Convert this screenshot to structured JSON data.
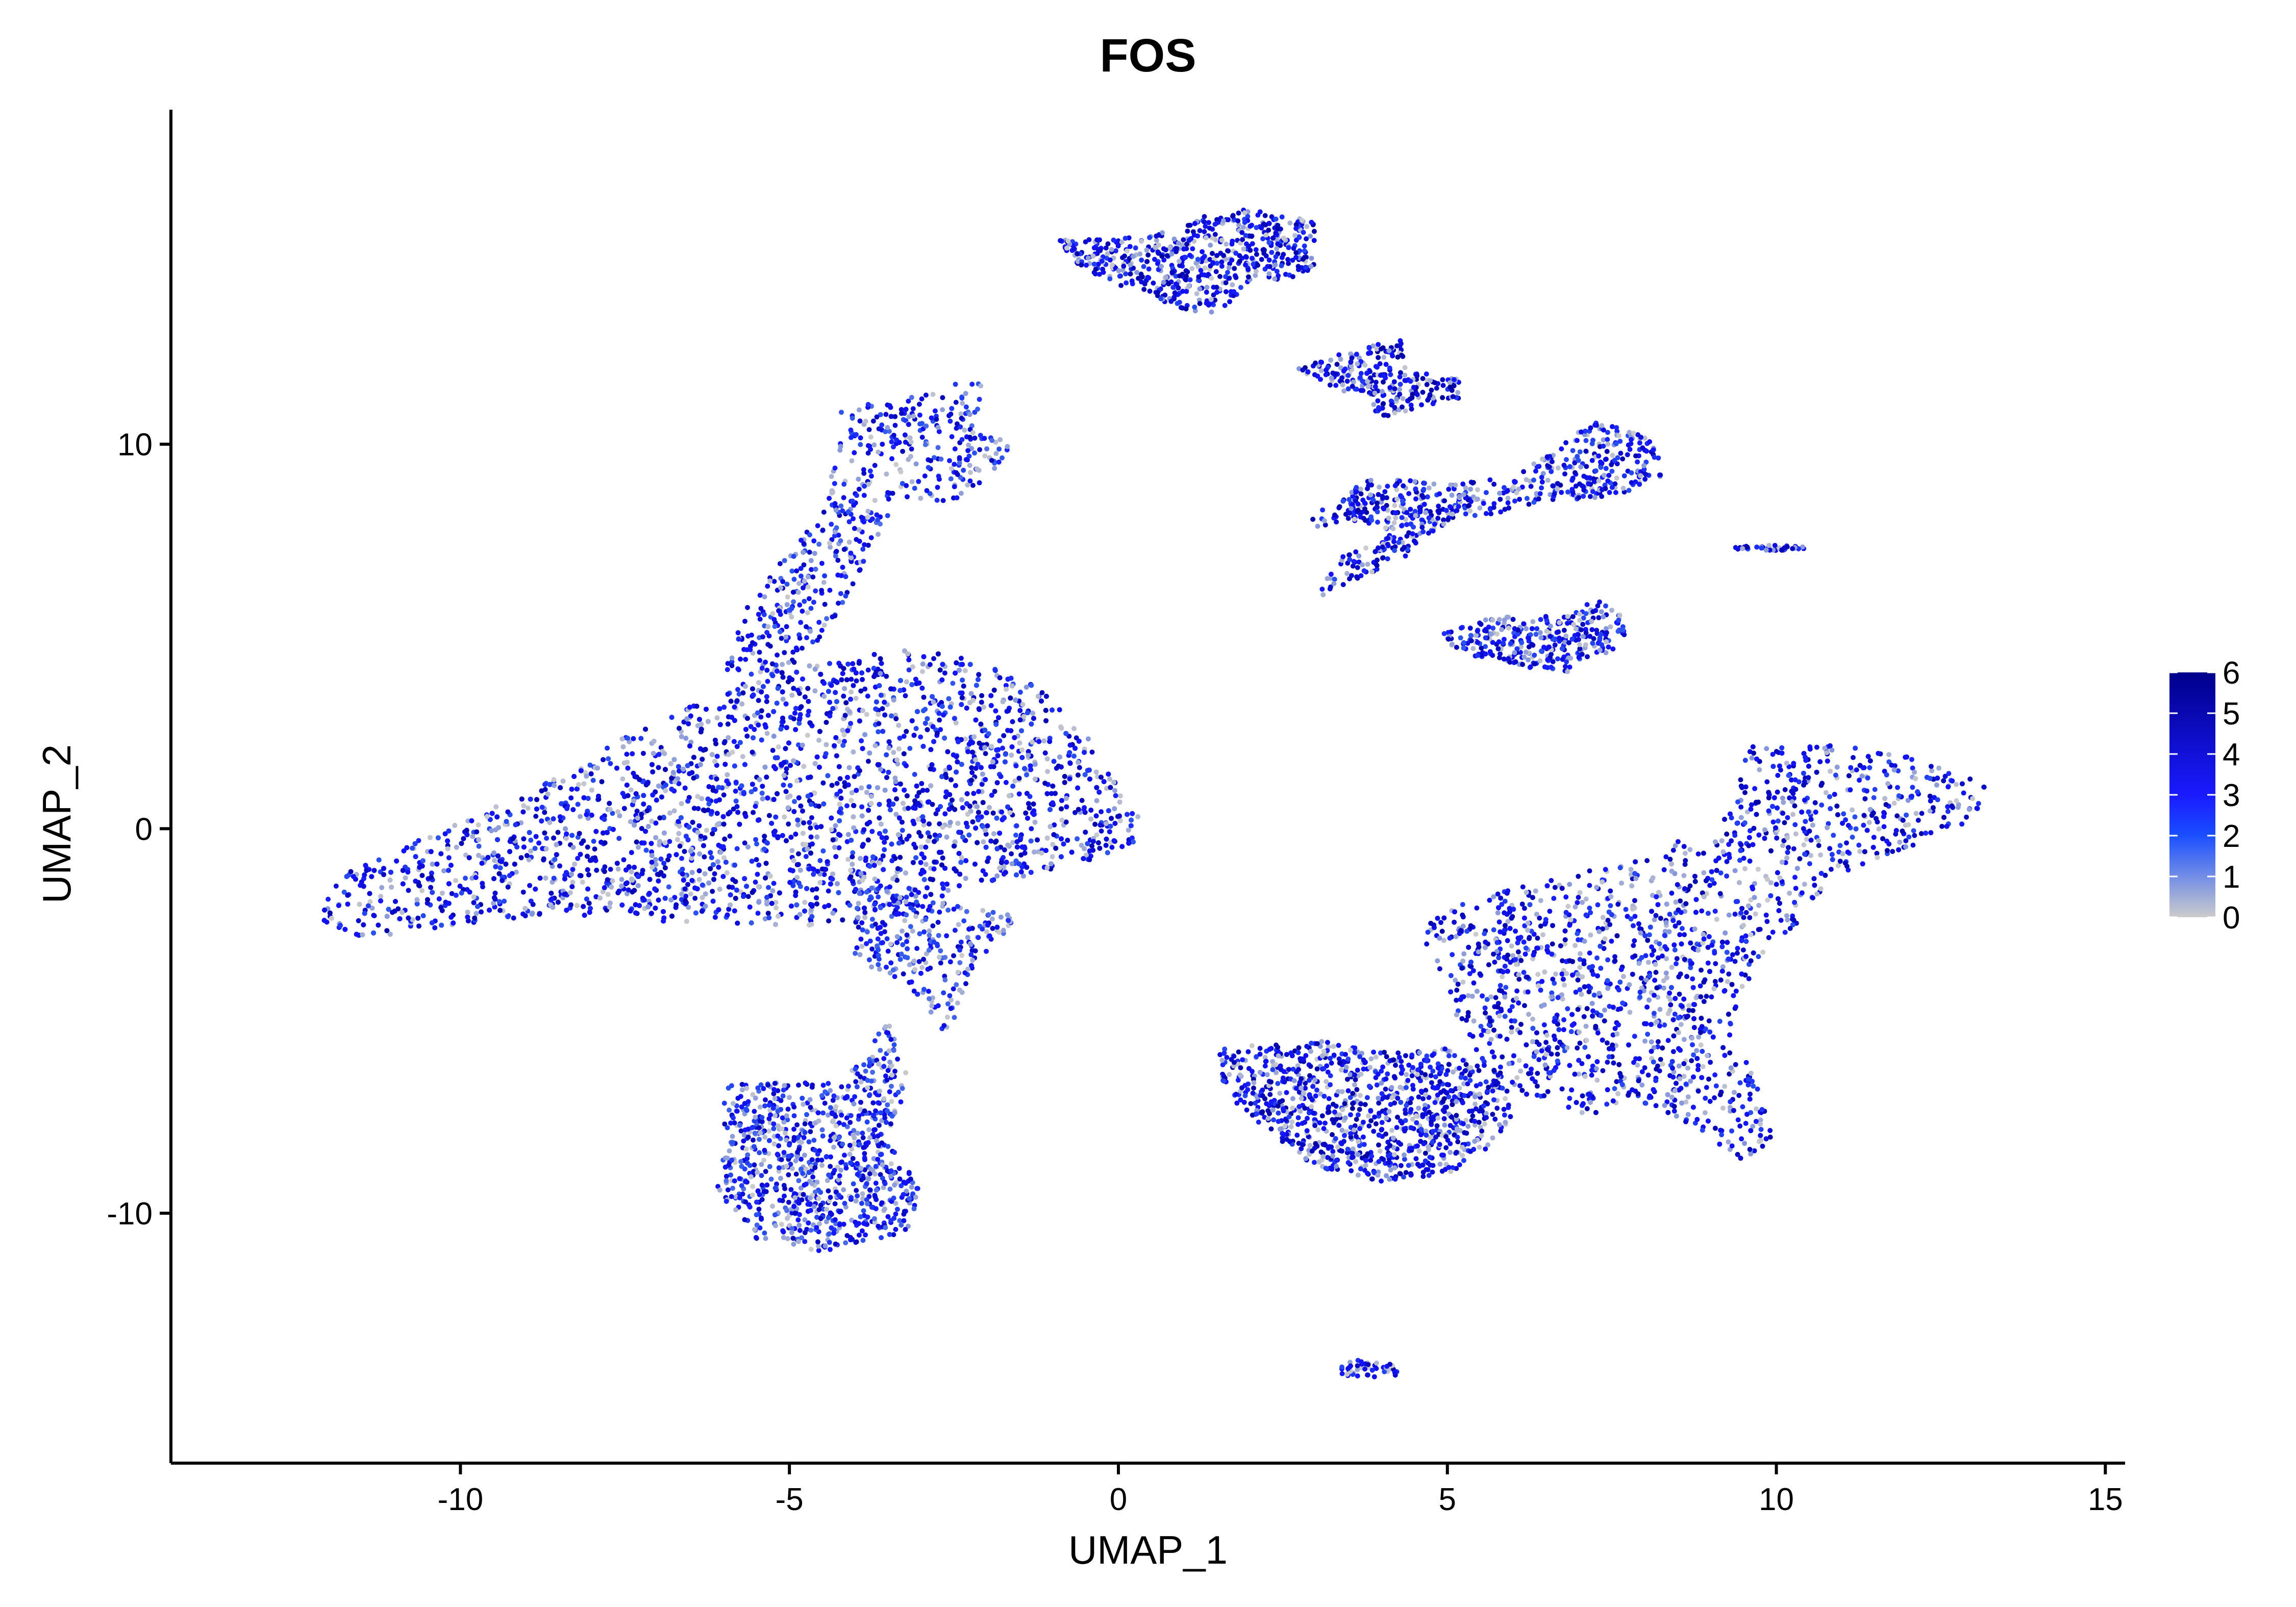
{
  "chart_data": {
    "type": "scatter",
    "title": "FOS",
    "xlabel": "UMAP_1",
    "ylabel": "UMAP_2",
    "xlim": [
      -14.4,
      15.3
    ],
    "ylim": [
      -16.5,
      18.7
    ],
    "x_ticks": [
      -10,
      -5,
      0,
      5,
      10,
      15
    ],
    "x_tick_labels": [
      "-10",
      "-5",
      "0",
      "5",
      "10",
      "15"
    ],
    "y_ticks": [
      -10,
      0,
      10
    ],
    "y_tick_labels": [
      "-10",
      "0",
      "10"
    ],
    "grid": false,
    "legend": {
      "placement": "right",
      "type": "colorbar",
      "min": 0,
      "max": 6,
      "ticks": [
        0,
        1,
        2,
        3,
        4,
        5,
        6
      ],
      "tick_labels": [
        "0",
        "1",
        "2",
        "3",
        "4",
        "5",
        "6"
      ]
    },
    "colors": {
      "low": "#cccccc",
      "mid": "#1a1aff",
      "high": "#00008b"
    },
    "clusters": [
      {
        "shape": "poly",
        "n": 5200,
        "mean_expr": 0.52,
        "poly": [
          [
            -12.1,
            -1.6
          ],
          [
            -11.6,
            -1.0
          ],
          [
            -10.5,
            -0.2
          ],
          [
            -9.5,
            0.6
          ],
          [
            -8.5,
            1.4
          ],
          [
            -7.6,
            2.3
          ],
          [
            -6.5,
            3.2
          ],
          [
            -5.8,
            3.6
          ],
          [
            -5.5,
            4.3
          ],
          [
            -3.0,
            4.7
          ],
          [
            -1.5,
            4.1
          ],
          [
            -0.6,
            2.7
          ],
          [
            0,
            1.3
          ],
          [
            0.35,
            0.2
          ],
          [
            0.2,
            -0.5
          ],
          [
            -0.8,
            -1.0
          ],
          [
            -2.2,
            -1.5
          ],
          [
            -3.0,
            -2.2
          ],
          [
            -4.5,
            -2.6
          ],
          [
            -5.2,
            -2.5
          ],
          [
            -6.5,
            -2.5
          ],
          [
            -8.5,
            -2.2
          ],
          [
            -10.0,
            -2.5
          ],
          [
            -11.5,
            -2.9
          ],
          [
            -12.2,
            -2.4
          ]
        ]
      },
      {
        "shape": "poly",
        "n": 520,
        "mean_expr": 0.42,
        "poly": [
          [
            -6.0,
            4.0
          ],
          [
            -5.6,
            6.0
          ],
          [
            -4.6,
            8.0
          ],
          [
            -4.3,
            9.5
          ],
          [
            -4.2,
            11.0
          ],
          [
            -3.2,
            11.2
          ],
          [
            -2.5,
            11.6
          ],
          [
            -2.0,
            11.8
          ],
          [
            -2.2,
            10.5
          ],
          [
            -1.6,
            10.0
          ],
          [
            -2.2,
            8.6
          ],
          [
            -3.4,
            8.4
          ],
          [
            -4.0,
            6.5
          ],
          [
            -4.4,
            5.0
          ],
          [
            -5.0,
            4.3
          ]
        ]
      },
      {
        "shape": "poly",
        "n": 260,
        "mean_expr": 0.38,
        "poly": [
          [
            -4.0,
            -1.0
          ],
          [
            -3.2,
            -1.8
          ],
          [
            -2.4,
            -2.0
          ],
          [
            -1.5,
            -2.3
          ],
          [
            -2.2,
            -3.6
          ],
          [
            -2.6,
            -5.4
          ],
          [
            -3.2,
            -4.0
          ],
          [
            -4.0,
            -3.5
          ]
        ]
      },
      {
        "shape": "poly",
        "n": 900,
        "mean_expr": 0.42,
        "poly": [
          [
            -6.0,
            -6.5
          ],
          [
            -5.4,
            -6.6
          ],
          [
            -4.2,
            -6.6
          ],
          [
            -3.5,
            -5.0
          ],
          [
            -3.2,
            -6.5
          ],
          [
            -3.5,
            -8.2
          ],
          [
            -3.0,
            -9.2
          ],
          [
            -3.2,
            -10.5
          ],
          [
            -4.5,
            -11.0
          ],
          [
            -5.5,
            -10.7
          ],
          [
            -6.1,
            -9.5
          ],
          [
            -6.0,
            -8.0
          ]
        ]
      },
      {
        "shape": "poly",
        "n": 2300,
        "mean_expr": 0.55,
        "poly": [
          [
            4.8,
            -2.2
          ],
          [
            6.5,
            -1.3
          ],
          [
            7.8,
            -0.9
          ],
          [
            8.5,
            -0.3
          ],
          [
            9.0,
            -0.6
          ],
          [
            9.6,
            2.2
          ],
          [
            10.5,
            2.2
          ],
          [
            11.2,
            2.2
          ],
          [
            12.2,
            1.8
          ],
          [
            13.2,
            1.2
          ],
          [
            13.0,
            0.2
          ],
          [
            12.0,
            -0.5
          ],
          [
            11.0,
            -1.2
          ],
          [
            10.2,
            -2.7
          ],
          [
            9.8,
            -3.3
          ],
          [
            9.3,
            -5.0
          ],
          [
            9.6,
            -6.2
          ],
          [
            9.8,
            -7.2
          ],
          [
            10.0,
            -8.2
          ],
          [
            9.5,
            -8.7
          ],
          [
            8.9,
            -7.9
          ],
          [
            8.4,
            -7.5
          ],
          [
            7.8,
            -7.0
          ],
          [
            7.2,
            -7.5
          ],
          [
            6.5,
            -7.0
          ],
          [
            5.8,
            -6.8
          ],
          [
            5.2,
            -5.2
          ],
          [
            5.0,
            -4.0
          ],
          [
            4.6,
            -3.0
          ]
        ]
      },
      {
        "shape": "poly",
        "n": 1000,
        "mean_expr": 0.6,
        "poly": [
          [
            1.5,
            -5.7
          ],
          [
            3.0,
            -5.5
          ],
          [
            4.0,
            -5.8
          ],
          [
            5.0,
            -5.7
          ],
          [
            5.8,
            -6.5
          ],
          [
            6.0,
            -7.5
          ],
          [
            5.5,
            -8.5
          ],
          [
            5.0,
            -9.0
          ],
          [
            4.0,
            -9.2
          ],
          [
            3.0,
            -8.8
          ],
          [
            2.0,
            -7.5
          ],
          [
            1.6,
            -6.8
          ]
        ]
      },
      {
        "shape": "poly",
        "n": 600,
        "mean_expr": 0.58,
        "poly": [
          [
            -0.9,
            15.3
          ],
          [
            0.5,
            15.4
          ],
          [
            1.0,
            15.8
          ],
          [
            2.0,
            16.2
          ],
          [
            3.0,
            15.8
          ],
          [
            3.0,
            14.7
          ],
          [
            2.8,
            14.4
          ],
          [
            2.0,
            14.1
          ],
          [
            1.5,
            13.4
          ],
          [
            1.0,
            13.5
          ],
          [
            0.2,
            14.0
          ],
          [
            -0.6,
            14.6
          ]
        ]
      },
      {
        "shape": "poly",
        "n": 260,
        "mean_expr": 0.65,
        "poly": [
          [
            2.7,
            12.0
          ],
          [
            3.7,
            12.5
          ],
          [
            4.3,
            12.8
          ],
          [
            4.4,
            11.9
          ],
          [
            5.2,
            11.7
          ],
          [
            5.2,
            11.2
          ],
          [
            4.0,
            10.7
          ],
          [
            3.7,
            11.2
          ],
          [
            2.9,
            11.7
          ]
        ]
      },
      {
        "shape": "poly",
        "n": 620,
        "mean_expr": 0.55,
        "poly": [
          [
            3.9,
            9.2
          ],
          [
            5.2,
            9.0
          ],
          [
            6.0,
            9.2
          ],
          [
            6.6,
            9.8
          ],
          [
            7.2,
            10.6
          ],
          [
            8.1,
            10.2
          ],
          [
            8.3,
            9.2
          ],
          [
            7.5,
            8.6
          ],
          [
            6.4,
            8.5
          ],
          [
            5.8,
            8.2
          ],
          [
            5.0,
            8.0
          ],
          [
            4.3,
            7.0
          ],
          [
            3.0,
            6.0
          ],
          [
            3.3,
            7.0
          ],
          [
            4.2,
            7.7
          ],
          [
            3.6,
            8.0
          ],
          [
            2.8,
            7.8
          ],
          [
            3.2,
            8.5
          ]
        ]
      },
      {
        "shape": "poly",
        "n": 320,
        "mean_expr": 0.5,
        "poly": [
          [
            4.8,
            5.0
          ],
          [
            5.7,
            5.5
          ],
          [
            6.8,
            5.6
          ],
          [
            7.3,
            6.0
          ],
          [
            7.8,
            5.3
          ],
          [
            7.5,
            4.6
          ],
          [
            7.0,
            4.4
          ],
          [
            6.8,
            4.0
          ],
          [
            6.2,
            4.2
          ],
          [
            5.5,
            4.4
          ]
        ]
      },
      {
        "shape": "ellipse",
        "n": 45,
        "mean_expr": 0.6,
        "cx": 9.9,
        "cy": 7.3,
        "rx": 0.55,
        "ry": 0.07
      },
      {
        "shape": "ellipse",
        "n": 45,
        "mean_expr": 0.55,
        "cx": 3.8,
        "cy": -14.1,
        "rx": 0.45,
        "ry": 0.3
      }
    ]
  }
}
